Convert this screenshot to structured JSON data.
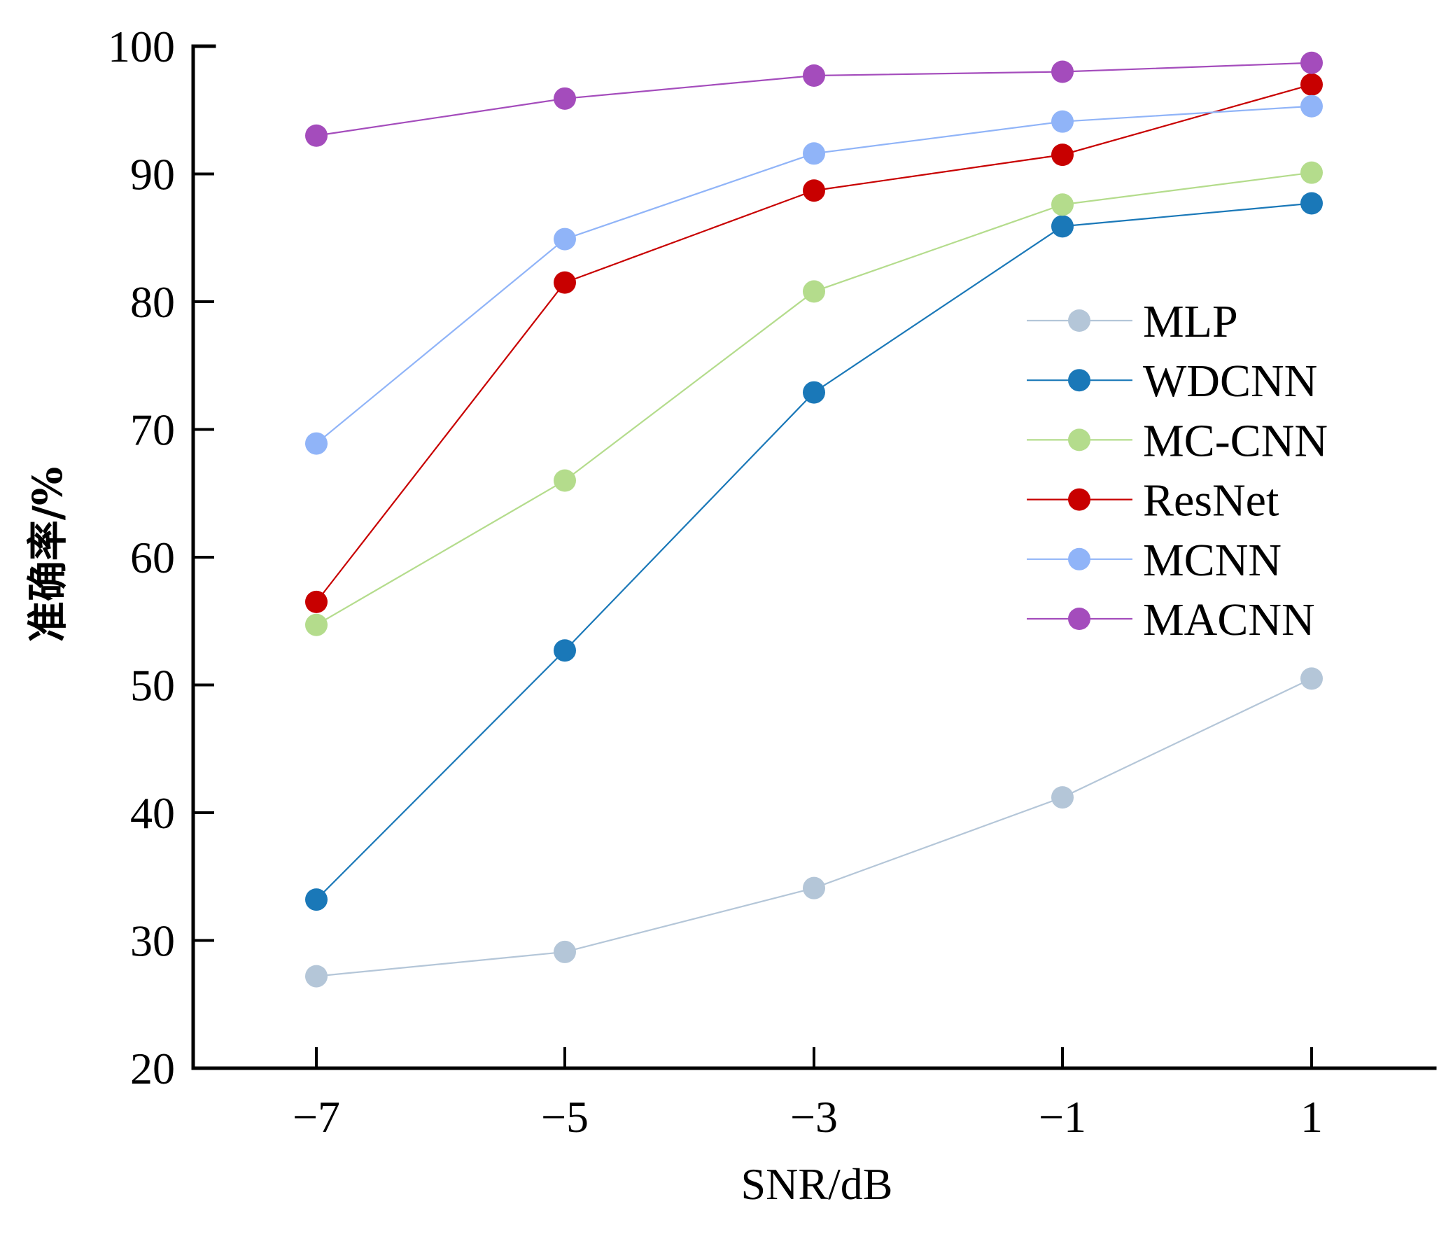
{
  "chart_data": {
    "type": "line",
    "title": "",
    "xlabel": "SNR/dB",
    "ylabel": "准确率/%",
    "x": [
      -7,
      -5,
      -3,
      -1,
      1
    ],
    "x_tick_labels": [
      "−7",
      "−5",
      "−3",
      "−1",
      "1"
    ],
    "y_ticks": [
      20,
      30,
      40,
      50,
      60,
      70,
      80,
      90,
      100
    ],
    "y_tick_labels": [
      "20",
      "30",
      "40",
      "50",
      "60",
      "70",
      "80",
      "90",
      "100"
    ],
    "ylim": [
      20,
      100
    ],
    "xlim": [
      -8,
      2
    ],
    "grid": false,
    "legend_position": "center-right",
    "series": [
      {
        "name": "MLP",
        "color": "#b4c6d8",
        "values": [
          27.2,
          29.1,
          34.1,
          41.2,
          50.5
        ]
      },
      {
        "name": "WDCNN",
        "color": "#1a78b8",
        "values": [
          33.2,
          52.7,
          72.9,
          85.9,
          87.7
        ]
      },
      {
        "name": "MC-CNN",
        "color": "#b4dc8c",
        "values": [
          54.7,
          66.0,
          80.8,
          87.6,
          90.1
        ]
      },
      {
        "name": "ResNet",
        "color": "#c80000",
        "values": [
          56.5,
          81.5,
          88.7,
          91.5,
          97.0
        ]
      },
      {
        "name": "MCNN",
        "color": "#90b4f8",
        "values": [
          68.9,
          84.9,
          91.6,
          94.1,
          95.3
        ]
      },
      {
        "name": "MACNN",
        "color": "#a44cbc",
        "values": [
          93.0,
          95.9,
          97.7,
          98.0,
          98.7
        ]
      }
    ]
  }
}
